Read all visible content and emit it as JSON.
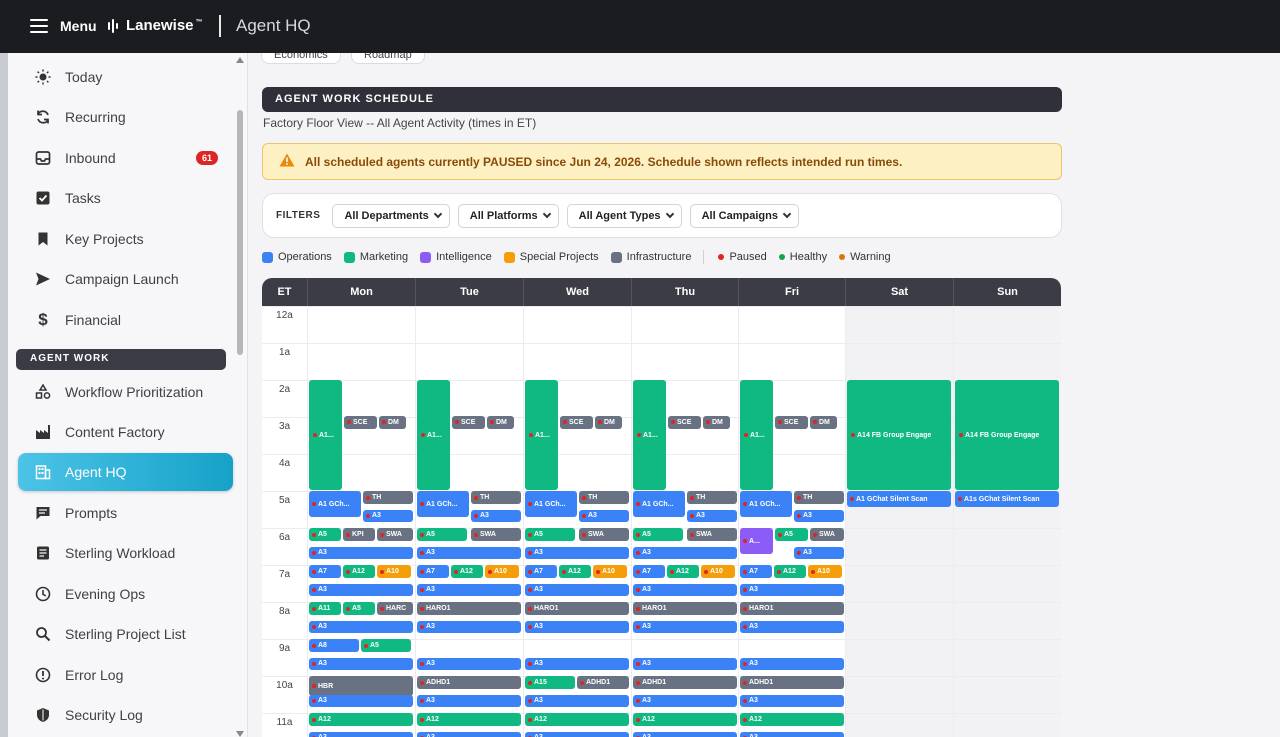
{
  "topbar": {
    "menu_label": "Menu",
    "brand": "Lanewise",
    "brand_mark": "™",
    "page_title": "Agent HQ"
  },
  "sidebar": {
    "items": [
      {
        "label": "Today",
        "icon": "sun-icon"
      },
      {
        "label": "Recurring",
        "icon": "refresh-icon"
      },
      {
        "label": "Inbound",
        "icon": "inbox-icon",
        "badge": "61"
      },
      {
        "label": "Tasks",
        "icon": "checkbox-icon"
      },
      {
        "label": "Key Projects",
        "icon": "bookmark-icon"
      },
      {
        "label": "Campaign Launch",
        "icon": "send-icon"
      },
      {
        "label": "Financial",
        "icon": "dollar-icon"
      }
    ],
    "section_label": "AGENT WORK",
    "agent_items": [
      {
        "label": "Workflow Prioritization",
        "icon": "shapes-icon"
      },
      {
        "label": "Content Factory",
        "icon": "factory-icon"
      },
      {
        "label": "Agent HQ",
        "icon": "building-icon",
        "active": true
      },
      {
        "label": "Prompts",
        "icon": "chat-icon"
      },
      {
        "label": "Sterling Workload",
        "icon": "document-icon"
      },
      {
        "label": "Evening Ops",
        "icon": "clock-icon"
      },
      {
        "label": "Sterling Project List",
        "icon": "search-icon"
      },
      {
        "label": "Error Log",
        "icon": "alert-circle-icon"
      },
      {
        "label": "Security Log",
        "icon": "shield-icon"
      }
    ]
  },
  "main": {
    "crumbs": [
      "Economics",
      "Roadmap"
    ],
    "section_title": "AGENT WORK SCHEDULE",
    "subtitle": "Factory Floor View -- All Agent Activity (times in ET)",
    "alert": "All scheduled agents currently PAUSED since Jun 24, 2026. Schedule shown reflects intended run times.",
    "filters": {
      "label": "FILTERS",
      "selects": [
        "All Departments",
        "All Platforms",
        "All Agent Types",
        "All Campaigns"
      ]
    },
    "legend": {
      "categories": [
        {
          "label": "Operations",
          "color": "#3b82f6"
        },
        {
          "label": "Marketing",
          "color": "#10b981"
        },
        {
          "label": "Intelligence",
          "color": "#8b5cf6"
        },
        {
          "label": "Special Projects",
          "color": "#f59e0b"
        },
        {
          "label": "Infrastructure",
          "color": "#697282"
        }
      ],
      "statuses": [
        {
          "label": "Paused",
          "color": "#dc2626"
        },
        {
          "label": "Healthy",
          "color": "#16a34a"
        },
        {
          "label": "Warning",
          "color": "#d97706"
        }
      ]
    },
    "schedule": {
      "time_header": "ET",
      "days": [
        "Mon",
        "Tue",
        "Wed",
        "Thu",
        "Fri",
        "Sat",
        "Sun"
      ],
      "hours": [
        "12a",
        "1a",
        "2a",
        "3a",
        "4a",
        "5a",
        "6a",
        "7a",
        "8a",
        "9a",
        "10a",
        "11a"
      ],
      "blocks": {
        "a1_weekday": "A1...",
        "sce": "SCE",
        "dm": "DM",
        "a14": "A14 FB Group Engage",
        "a1gch": "A1 GCh...",
        "a1gchat_sat": "A1 GChat Silent Scan",
        "a1gchat_sun": "A1s GChat Silent Scan",
        "th": "TH",
        "a3": "A3",
        "a5": "A5",
        "kpi": "KPI",
        "swa": "SWA",
        "a_fri": "A...",
        "a7": "A7",
        "a12": "A12",
        "a10": "A10",
        "a11": "A11",
        "haro": "HARC",
        "haro1": "HARO1",
        "a8": "A8",
        "adhd1": "ADHD1",
        "hbr": "HBR",
        "a15": "A15"
      }
    }
  }
}
